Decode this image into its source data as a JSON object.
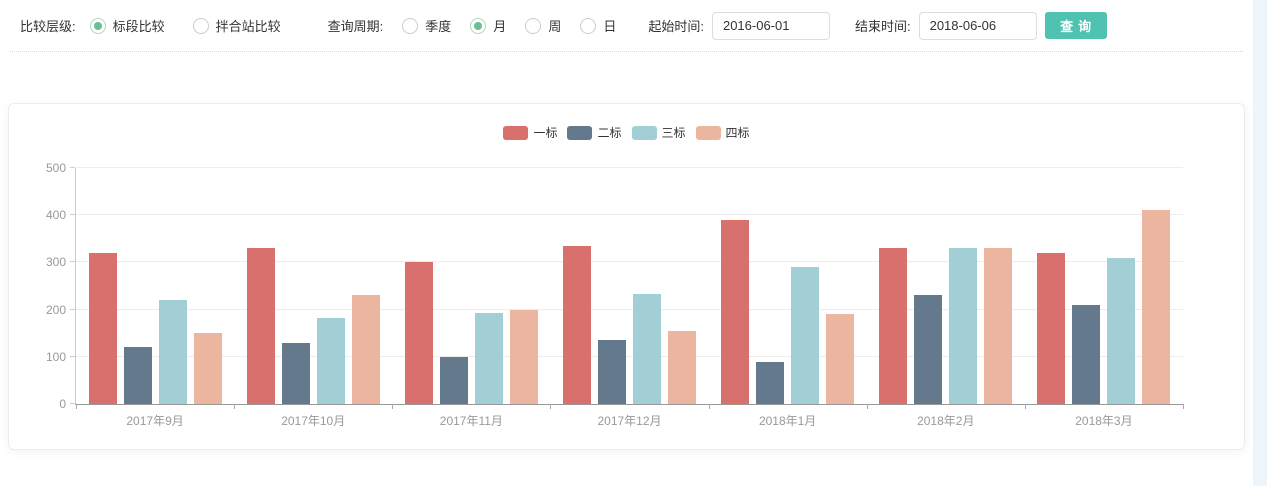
{
  "filter_bar": {
    "compare_level": {
      "label": "比较层级:",
      "options": [
        {
          "label": "标段比较",
          "selected": true
        },
        {
          "label": "拌合站比较",
          "selected": false
        }
      ]
    },
    "query_period": {
      "label": "查询周期:",
      "options": [
        {
          "label": "季度",
          "selected": false
        },
        {
          "label": "月",
          "selected": true
        },
        {
          "label": "周",
          "selected": false
        },
        {
          "label": "日",
          "selected": false
        }
      ]
    },
    "start_time": {
      "label": "起始时间:",
      "value": "2016-06-01"
    },
    "end_time": {
      "label": "结束时间:",
      "value": "2018-06-06"
    },
    "search_button": "查询"
  },
  "colors": {
    "button_teal": "#4FC2B2",
    "radio_selected_green": "#6CBE8E",
    "axis_label_gray": "#999999",
    "series_red": "#D8706D",
    "series_slate": "#65798D",
    "series_teal": "#A2CFD6",
    "series_salmon": "#EBB5A0"
  },
  "chart_data": {
    "type": "bar",
    "categories": [
      "2017年9月",
      "2017年10月",
      "2017年11月",
      "2017年12月",
      "2018年1月",
      "2018年2月",
      "2018年3月"
    ],
    "series": [
      {
        "name": "一标",
        "color": "#D8706D",
        "values": [
          320,
          330,
          300,
          335,
          390,
          330,
          320
        ]
      },
      {
        "name": "二标",
        "color": "#65798D",
        "values": [
          120,
          130,
          100,
          135,
          90,
          230,
          210
        ]
      },
      {
        "name": "三标",
        "color": "#A2CFD6",
        "values": [
          220,
          183,
          192,
          234,
          290,
          330,
          310
        ]
      },
      {
        "name": "四标",
        "color": "#EBB5A0",
        "values": [
          150,
          230,
          200,
          155,
          190,
          330,
          410
        ]
      }
    ],
    "title": "",
    "xlabel": "",
    "ylabel": "",
    "ylim": [
      0,
      500
    ],
    "yticks": [
      0,
      100,
      200,
      300,
      400,
      500
    ],
    "grid": true,
    "legend_position": "top-center"
  }
}
